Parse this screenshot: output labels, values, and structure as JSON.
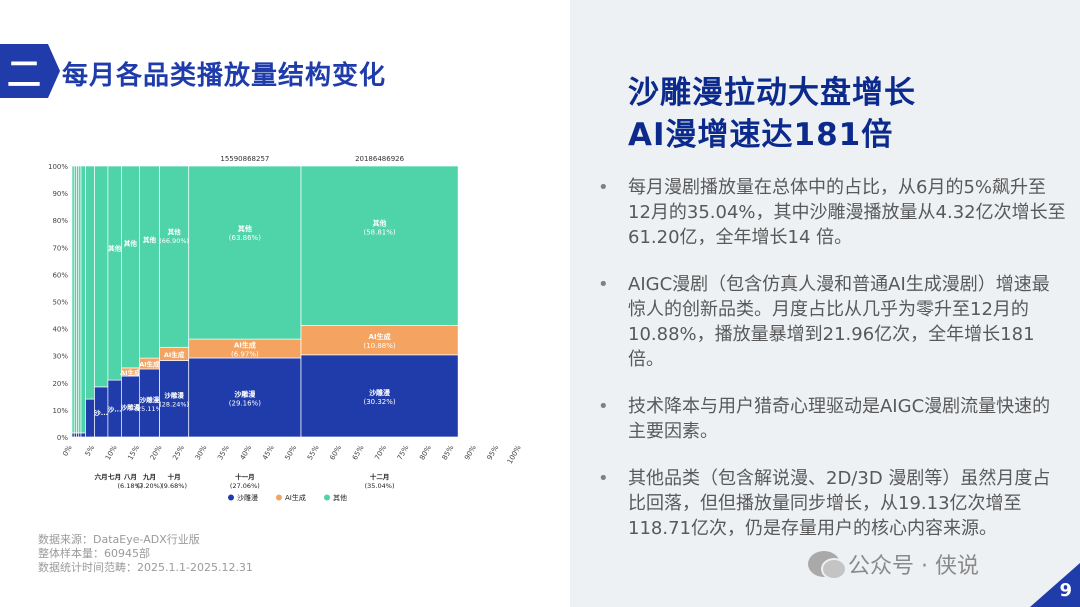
{
  "section": {
    "badge": "二",
    "title": "每月各品类播放量结构变化"
  },
  "headline": {
    "line1": "沙雕漫拉动大盘增长",
    "line2": "AI漫增速达181倍"
  },
  "bullets": [
    "每月漫剧播放量在总体中的占比，从6月的5%飙升至12月的35.04%，其中沙雕漫播放量从4.32亿次增长至61.20亿，全年增长14 倍。",
    "AIGC漫剧（包含仿真人漫和普通AI生成漫剧）增速最惊人的创新品类。月度占比从几乎为零升至12月的10.88%，播放量暴增到21.96亿次，全年增长181倍。",
    "技术降本与用户猎奇心理驱动是AIGC漫剧流量快速的主要因素。",
    "其他品类（包含解说漫、2D/3D 漫剧等）虽然月度占比回落，但但播放量同步增长，从19.13亿次增至118.71亿次，仍是存量用户的核心内容来源。"
  ],
  "bullet_symbol": "•",
  "source": {
    "line1": "数据来源：DataEye-ADX行业版",
    "line2": "整体样本量：60945部",
    "line3": "数据统计时间范畴：2025.1.1-2025.12.31"
  },
  "wechat": "公众号 · 侠说",
  "page_number": "9",
  "colors": {
    "shadiao": "#1f3caa",
    "ai": "#f4a460",
    "other": "#4fd3a8",
    "accent": "#1f3caa"
  },
  "chart_data": {
    "type": "marimekko",
    "legend_position": "bottom",
    "series": [
      {
        "name": "沙雕漫",
        "key": "shadiao"
      },
      {
        "name": "AI生成",
        "key": "ai"
      },
      {
        "name": "其他",
        "key": "other"
      }
    ],
    "x_ticks": [
      "0%",
      "5%",
      "10%",
      "15%",
      "20%",
      "25%",
      "30%",
      "35%",
      "40%",
      "45%",
      "50%",
      "55%",
      "60%",
      "65%",
      "70%",
      "75%",
      "80%",
      "85%",
      "90%",
      "95%",
      "100%"
    ],
    "y_ticks": [
      "0%",
      "10%",
      "20%",
      "30%",
      "40%",
      "50%",
      "60%",
      "70%",
      "80%",
      "90%",
      "100%"
    ],
    "columns": [
      {
        "width": 0.5,
        "shadiao": 1.5,
        "ai": 0,
        "other": 98.5,
        "labels": []
      },
      {
        "width": 0.5,
        "shadiao": 1.5,
        "ai": 0,
        "other": 98.5,
        "labels": []
      },
      {
        "width": 0.5,
        "shadiao": 1.5,
        "ai": 0,
        "other": 98.5,
        "labels": []
      },
      {
        "width": 0.5,
        "shadiao": 1.5,
        "ai": 0,
        "other": 98.5,
        "labels": []
      },
      {
        "width": 1.0,
        "shadiao": 1.5,
        "ai": 0,
        "other": 98.5,
        "labels": []
      },
      {
        "width": 2.0,
        "shadiao": 14,
        "ai": 0,
        "other": 86,
        "labels": []
      },
      {
        "width": 3.0,
        "shadiao": 18.5,
        "ai": 0,
        "other": 81.5,
        "cat": "六月",
        "labels": [
          [
            "shadiao",
            "沙..."
          ]
        ]
      },
      {
        "width": 3.0,
        "shadiao": 21,
        "ai": 0,
        "other": 79,
        "cat": "七月",
        "labels": [
          [
            "shadiao",
            "沙..."
          ],
          [
            "other",
            "其他"
          ]
        ]
      },
      {
        "width": 4.0,
        "shadiao": 22.5,
        "ai": 3,
        "other": 74.5,
        "cat": "八月",
        "pct": "(6.18%)",
        "labels": [
          [
            "shadiao",
            "沙雕漫"
          ],
          [
            "ai",
            "AI生成"
          ],
          [
            "other",
            "其他"
          ]
        ]
      },
      {
        "width": 4.5,
        "shadiao": 25.11,
        "ai": 4,
        "other": 70.89,
        "cat": "九月",
        "pct": "(7.20%)",
        "labels": [
          [
            "shadiao",
            "沙雕漫",
            "(25.11%)"
          ],
          [
            "ai",
            "AI生成"
          ],
          [
            "other",
            "其他"
          ]
        ]
      },
      {
        "width": 6.5,
        "shadiao": 28.24,
        "ai": 4.86,
        "other": 66.9,
        "cat": "十月",
        "pct": "(9.68%)",
        "labels": [
          [
            "shadiao",
            "沙雕漫",
            "(28.24%)"
          ],
          [
            "ai",
            "AI生成"
          ],
          [
            "other",
            "其他",
            "(66.90%)"
          ]
        ]
      },
      {
        "width": 25.0,
        "shadiao": 29.16,
        "ai": 6.97,
        "other": 63.86,
        "cat": "十一月",
        "pct": "(27.06%)",
        "top": "15590868257",
        "labels": [
          [
            "shadiao",
            "沙雕漫",
            "(29.16%)"
          ],
          [
            "ai",
            "AI生成",
            "(6.97%)"
          ],
          [
            "other",
            "其他",
            "(63.86%)"
          ]
        ]
      },
      {
        "width": 35.0,
        "shadiao": 30.32,
        "ai": 10.88,
        "other": 58.81,
        "cat": "十二月",
        "pct": "(35.04%)",
        "top": "20186486926",
        "labels": [
          [
            "shadiao",
            "沙雕漫",
            "(30.32%)"
          ],
          [
            "ai",
            "AI生成",
            "(10.88%)"
          ],
          [
            "other",
            "其他",
            "(58.81%)"
          ]
        ]
      }
    ]
  }
}
